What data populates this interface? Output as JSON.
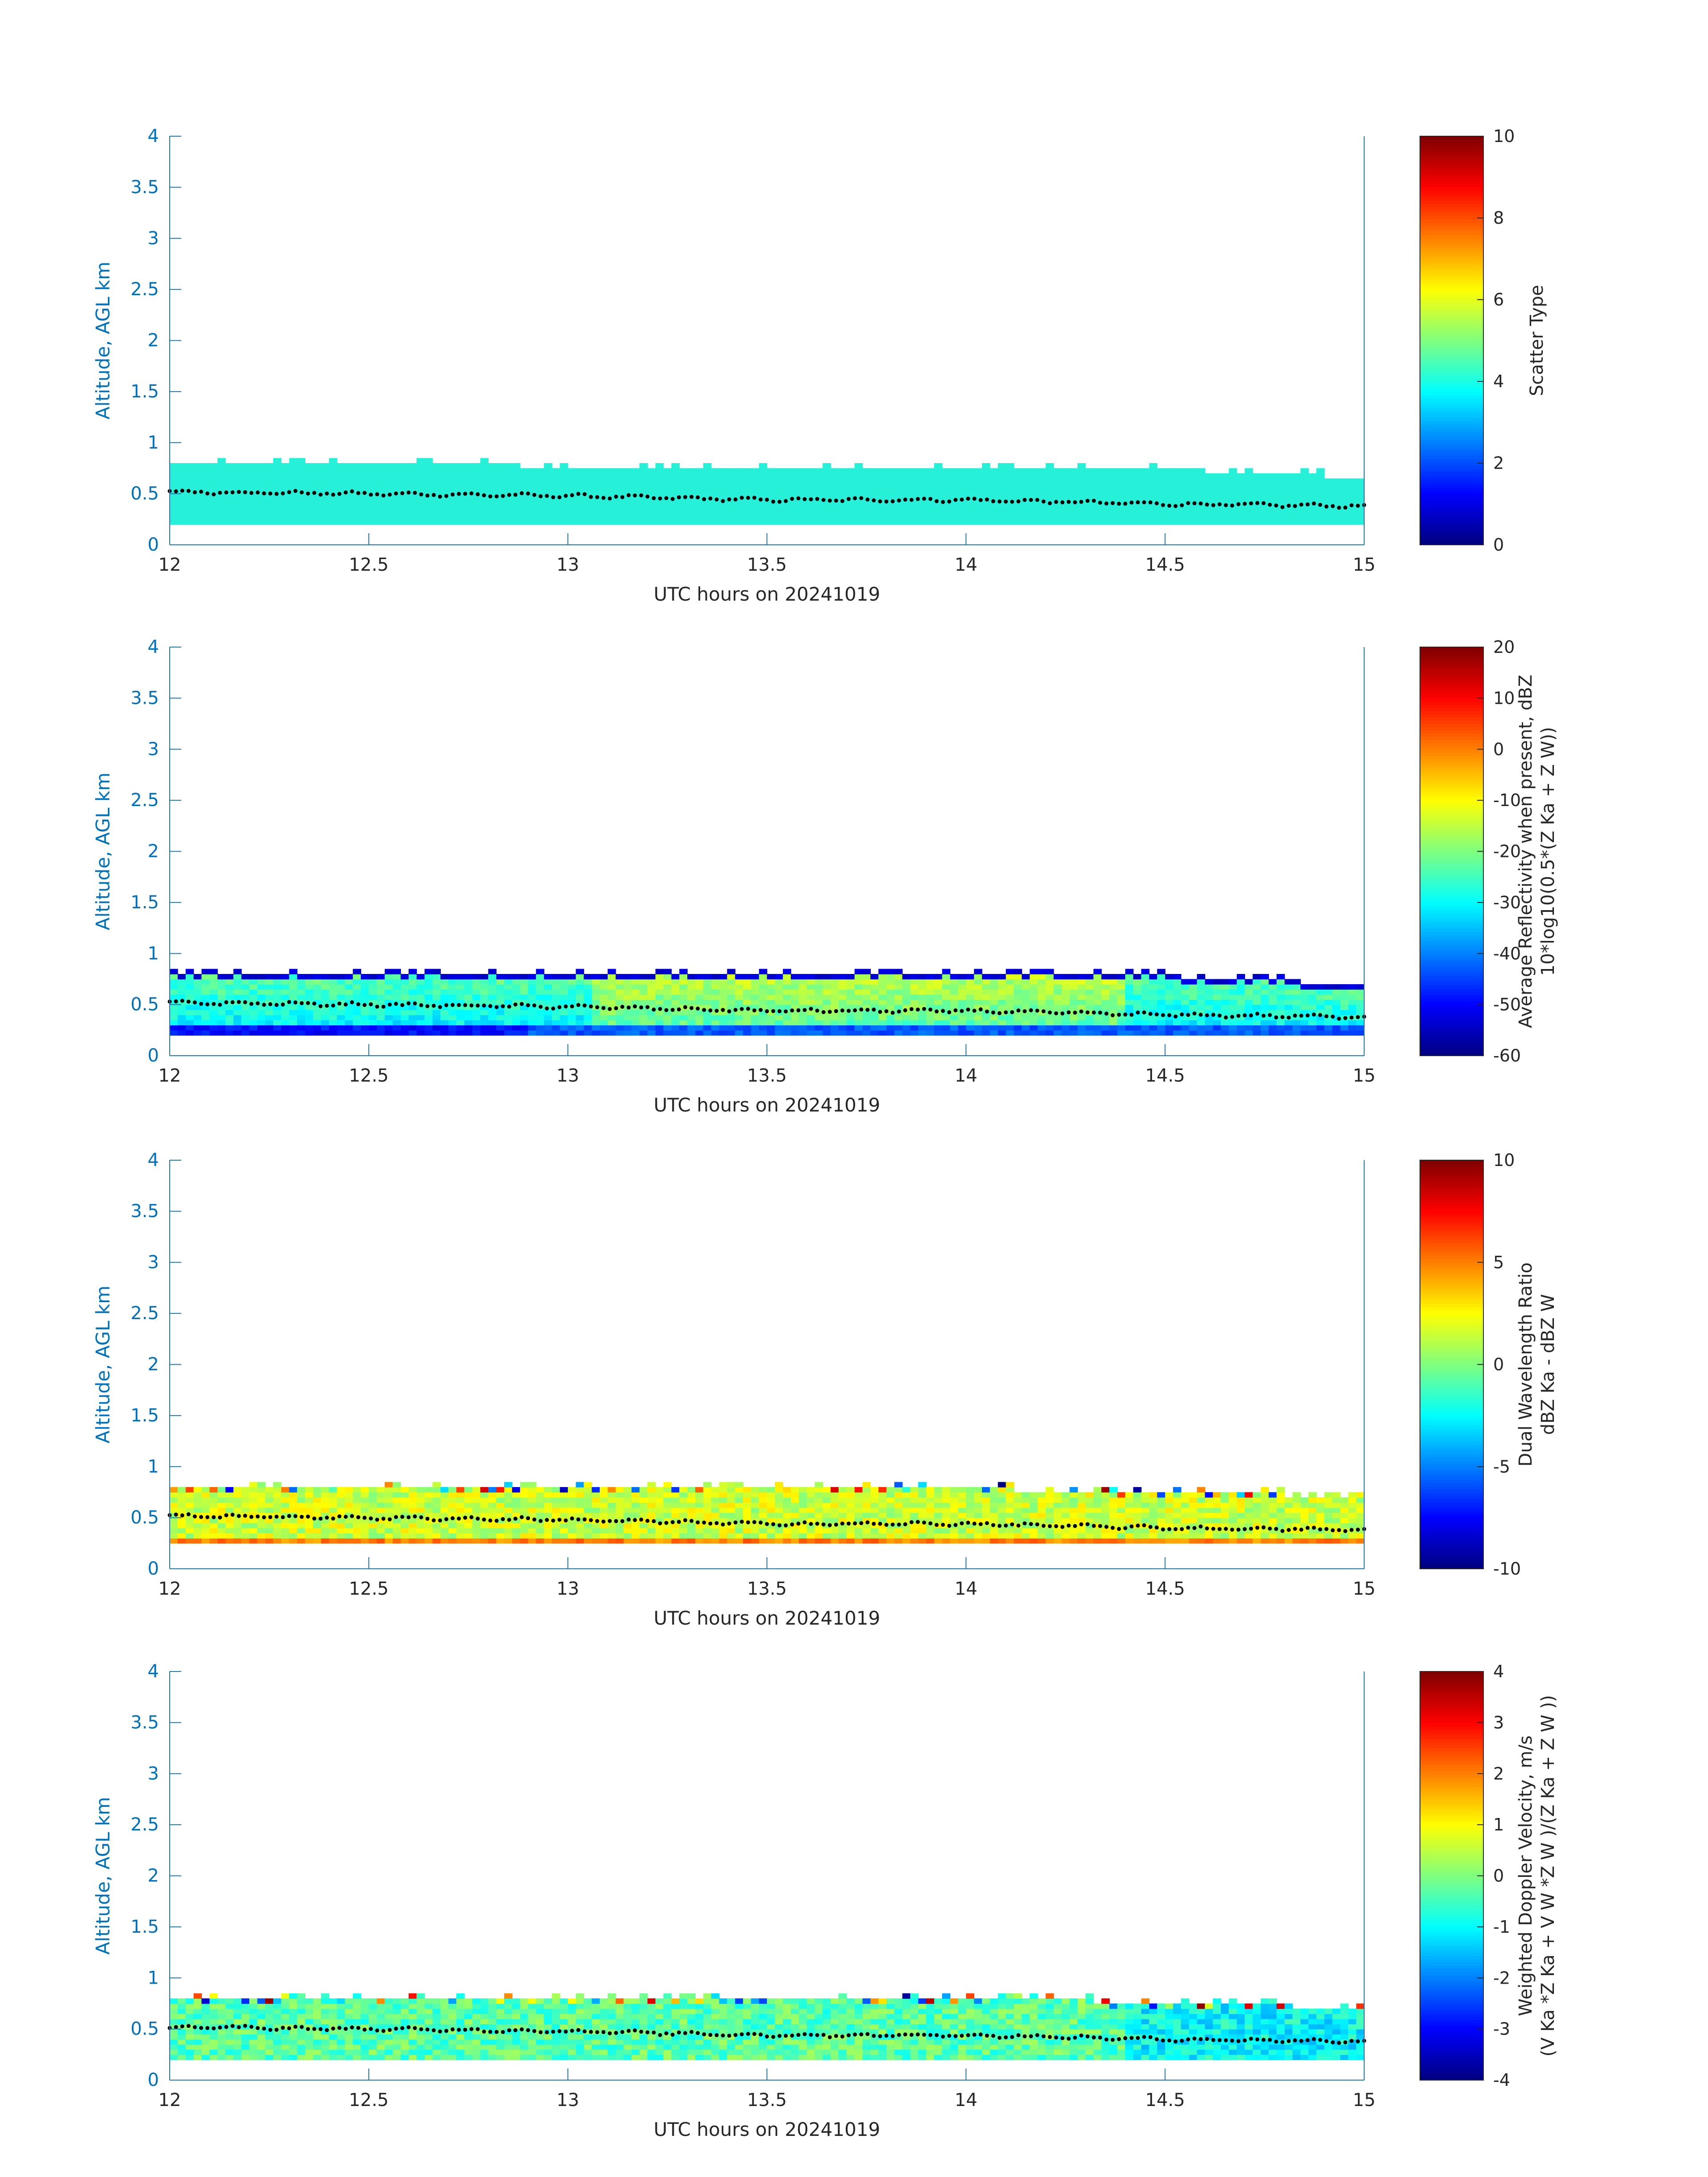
{
  "figure": {
    "background": "#ffffff",
    "axis_color": "#1f77b4",
    "label_color": "#0072bd",
    "text_color": "#262626"
  },
  "chart_data": [
    {
      "type": "heatmap",
      "xlabel": "UTC hours on 20241019",
      "ylabel": "Altitude, AGL km",
      "xlim": [
        12,
        15
      ],
      "ylim": [
        0,
        4
      ],
      "xticks": [
        "12",
        "12.5",
        "13",
        "13.5",
        "14",
        "14.5",
        "15"
      ],
      "yticks": [
        "0",
        "0.5",
        "1",
        "1.5",
        "2",
        "2.5",
        "3",
        "3.5",
        "4"
      ],
      "colorbar": {
        "label_lines": [
          "Scatter Type"
        ],
        "min": 0,
        "max": 10,
        "ticks": [
          "0",
          "2",
          "4",
          "6",
          "8",
          "10"
        ]
      },
      "layer": {
        "bottom_km": 0.2,
        "top_km": [
          0.82,
          0.82,
          0.76,
          0.76,
          0.76,
          0.74,
          0.66
        ],
        "mode": "uniform",
        "value": 3.8
      },
      "trace_km": [
        0.52,
        0.5,
        0.48,
        0.44,
        0.44,
        0.4,
        0.38
      ]
    },
    {
      "type": "heatmap",
      "xlabel": "UTC hours on 20241019",
      "ylabel": "Altitude, AGL km",
      "xlim": [
        12,
        15
      ],
      "ylim": [
        0,
        4
      ],
      "xticks": [
        "12",
        "12.5",
        "13",
        "13.5",
        "14",
        "14.5",
        "15"
      ],
      "yticks": [
        "0",
        "0.5",
        "1",
        "1.5",
        "2",
        "2.5",
        "3",
        "3.5",
        "4"
      ],
      "colorbar": {
        "label_lines": [
          "Average Reflectivity when present, dBZ",
          "10*log10(0.5*(Z Ka + Z W))"
        ],
        "min": -60,
        "max": 20,
        "ticks": [
          "-60",
          "-50",
          "-40",
          "-30",
          "-20",
          "-10",
          "0",
          "10",
          "20"
        ]
      },
      "layer": {
        "bottom_km": 0.2,
        "top_km": [
          0.82,
          0.82,
          0.8,
          0.8,
          0.78,
          0.78,
          0.7
        ],
        "mode": "reflectivity",
        "value": -25
      },
      "trace_km": [
        0.52,
        0.5,
        0.48,
        0.44,
        0.44,
        0.4,
        0.38
      ]
    },
    {
      "type": "heatmap",
      "xlabel": "UTC hours on 20241019",
      "ylabel": "Altitude, AGL km",
      "xlim": [
        12,
        15
      ],
      "ylim": [
        0,
        4
      ],
      "xticks": [
        "12",
        "12.5",
        "13",
        "13.5",
        "14",
        "14.5",
        "15"
      ],
      "yticks": [
        "0",
        "0.5",
        "1",
        "1.5",
        "2",
        "2.5",
        "3",
        "3.5",
        "4"
      ],
      "colorbar": {
        "label_lines": [
          "Dual Wavelength Ratio",
          "dBZ Ka - dBZ W"
        ],
        "min": -10,
        "max": 10,
        "ticks": [
          "-10",
          "-5",
          "0",
          "5",
          "10"
        ]
      },
      "layer": {
        "bottom_km": 0.25,
        "top_km": [
          0.82,
          0.8,
          0.8,
          0.8,
          0.78,
          0.76,
          0.7
        ],
        "mode": "dwr",
        "value": 1.5
      },
      "trace_km": [
        0.52,
        0.5,
        0.48,
        0.44,
        0.44,
        0.4,
        0.38
      ]
    },
    {
      "type": "heatmap",
      "xlabel": "UTC hours on 20241019",
      "ylabel": "Altitude, AGL km",
      "xlim": [
        12,
        15
      ],
      "ylim": [
        0,
        4
      ],
      "xticks": [
        "12",
        "12.5",
        "13",
        "13.5",
        "14",
        "14.5",
        "15"
      ],
      "yticks": [
        "0",
        "0.5",
        "1",
        "1.5",
        "2",
        "2.5",
        "3",
        "3.5",
        "4"
      ],
      "colorbar": {
        "label_lines": [
          "Weighted Doppler Velocity, m/s",
          "(V Ka *Z Ka + V W *Z W )/(Z Ka + Z W ))"
        ],
        "min": -4,
        "max": 4,
        "ticks": [
          "-4",
          "-3",
          "-2",
          "-1",
          "0",
          "1",
          "2",
          "3",
          "4"
        ]
      },
      "layer": {
        "bottom_km": 0.2,
        "top_km": [
          0.82,
          0.82,
          0.82,
          0.82,
          0.8,
          0.76,
          0.7
        ],
        "mode": "velocity",
        "value": -0.5
      },
      "trace_km": [
        0.52,
        0.5,
        0.48,
        0.44,
        0.44,
        0.4,
        0.38
      ]
    }
  ]
}
